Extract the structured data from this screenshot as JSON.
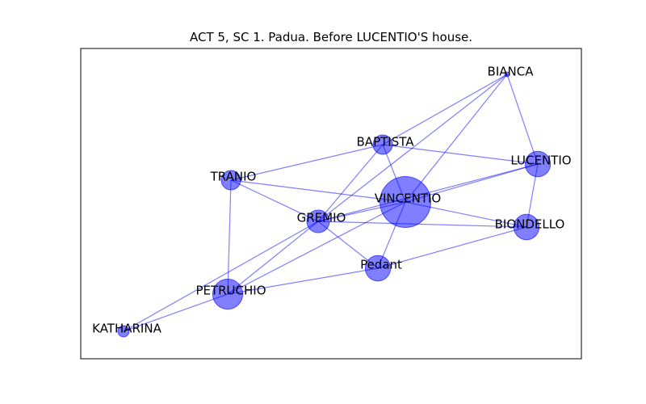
{
  "title": "ACT 5, SC 1. Padua. Before LUCENTIO'S house.",
  "colors": {
    "node": "#0000ff",
    "edge": "#0000ff",
    "frame": "#000000",
    "text": "#000000"
  },
  "nodes": [
    {
      "id": "VINCENTIO",
      "label": "VINCENTIO",
      "weight": 10
    },
    {
      "id": "BAPTISTA",
      "label": "BAPTISTA",
      "weight": 1
    },
    {
      "id": "LUCENTIO",
      "label": "LUCENTIO",
      "weight": 2
    },
    {
      "id": "BIANCA",
      "label": "BIANCA",
      "weight": 0
    },
    {
      "id": "TRANIO",
      "label": "TRANIO",
      "weight": 1
    },
    {
      "id": "GREMIO",
      "label": "GREMIO",
      "weight": 1.5
    },
    {
      "id": "BIONDELLO",
      "label": "BIONDELLO",
      "weight": 2
    },
    {
      "id": "Pedant",
      "label": "Pedant",
      "weight": 2
    },
    {
      "id": "PETRUCHIO",
      "label": "PETRUCHIO",
      "weight": 3
    },
    {
      "id": "KATHARINA",
      "label": "KATHARINA",
      "weight": 0.2
    }
  ],
  "edges": [
    [
      "BIANCA",
      "BAPTISTA"
    ],
    [
      "BIANCA",
      "LUCENTIO"
    ],
    [
      "BIANCA",
      "VINCENTIO"
    ],
    [
      "BIANCA",
      "GREMIO"
    ],
    [
      "BAPTISTA",
      "LUCENTIO"
    ],
    [
      "BAPTISTA",
      "TRANIO"
    ],
    [
      "BAPTISTA",
      "VINCENTIO"
    ],
    [
      "BAPTISTA",
      "GREMIO"
    ],
    [
      "TRANIO",
      "VINCENTIO"
    ],
    [
      "TRANIO",
      "GREMIO"
    ],
    [
      "TRANIO",
      "PETRUCHIO"
    ],
    [
      "LUCENTIO",
      "VINCENTIO"
    ],
    [
      "LUCENTIO",
      "BIONDELLO"
    ],
    [
      "LUCENTIO",
      "GREMIO"
    ],
    [
      "VINCENTIO",
      "GREMIO"
    ],
    [
      "VINCENTIO",
      "BIONDELLO"
    ],
    [
      "VINCENTIO",
      "Pedant"
    ],
    [
      "VINCENTIO",
      "PETRUCHIO"
    ],
    [
      "GREMIO",
      "BIONDELLO"
    ],
    [
      "GREMIO",
      "Pedant"
    ],
    [
      "GREMIO",
      "PETRUCHIO"
    ],
    [
      "GREMIO",
      "KATHARINA"
    ],
    [
      "BIONDELLO",
      "Pedant"
    ],
    [
      "Pedant",
      "PETRUCHIO"
    ],
    [
      "PETRUCHIO",
      "KATHARINA"
    ]
  ]
}
